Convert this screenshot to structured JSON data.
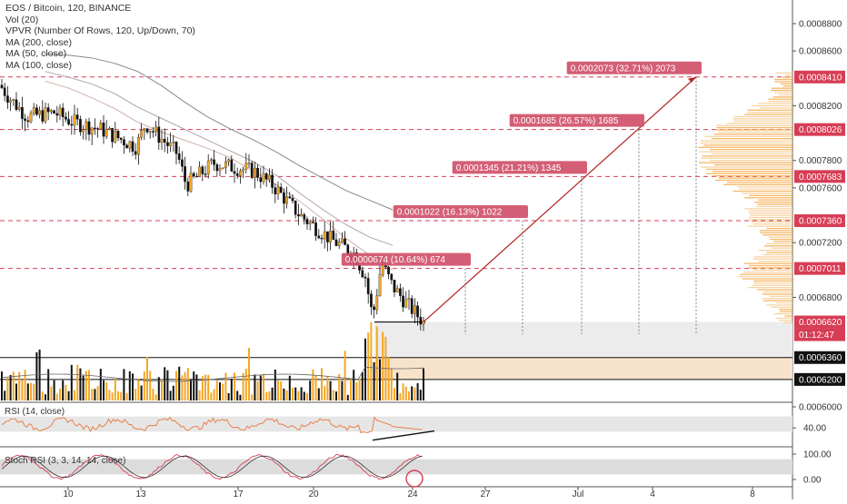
{
  "legend": {
    "symbol_line": "EOS / Bitcoin, 120, BINANCE",
    "vol_line": "Vol (20)",
    "vpvr_line": "VPVR (Number Of Rows, 120, Up/Down, 70)",
    "ma200_line": "MA (200, close)",
    "ma50_line": "MA (50, close)",
    "ma100_line": "MA (100, close)"
  },
  "price_axis": {
    "ticks": [
      "0.0008800",
      "0.0008600",
      "0.0008200",
      "0.0007800",
      "0.0007600",
      "0.0007200",
      "0.0006800",
      "0.0006000"
    ],
    "ticks_values": [
      0.00088,
      0.00086,
      0.00082,
      0.00078,
      0.00076,
      0.00072,
      0.00068,
      0.0006
    ]
  },
  "levels": [
    {
      "label": "0.0008410",
      "value": 0.000841,
      "style": "red"
    },
    {
      "label": "0.0008026",
      "value": 0.0008026,
      "style": "red"
    },
    {
      "label": "0.0007683",
      "value": 0.0007683,
      "style": "red"
    },
    {
      "label": "0.0007360",
      "value": 0.000736,
      "style": "red"
    },
    {
      "label": "0.0007011",
      "value": 0.0007011,
      "style": "red"
    },
    {
      "label": "0.0006620",
      "value": 0.000662,
      "style": "current"
    },
    {
      "label": "0.0006360",
      "value": 0.000636,
      "style": "black"
    },
    {
      "label": "0.0006200",
      "value": 0.00062,
      "style": "black"
    }
  ],
  "countdown": "01:12:47",
  "targets": [
    {
      "text": "0.0000674 (10.64%) 674",
      "value": 0.0007011,
      "date": "Jun 26"
    },
    {
      "text": "0.0001022 (16.13%) 1022",
      "value": 0.000736,
      "date": "Jun 27"
    },
    {
      "text": "0.0001345 (21.21%) 1345",
      "value": 0.0007683,
      "date": "Jun 30"
    },
    {
      "text": "0.0001685 (26.57%) 1685",
      "value": 0.0008026,
      "date": "Jul 3"
    },
    {
      "text": "0.0002073 (32.71%) 2073",
      "value": 0.000841,
      "date": "Jul 5"
    }
  ],
  "rsi": {
    "label": "RSI (14, close)",
    "tick": "40.00",
    "tick_value": 40
  },
  "stoch": {
    "label": "Stoch RSI (3, 3, 14, 14, close)",
    "ticks": [
      "100.00",
      "0.00"
    ],
    "tick_values": [
      100,
      0
    ]
  },
  "time_axis": {
    "labels": [
      "10",
      "13",
      "17",
      "20",
      "24",
      "27",
      "Jul",
      "4",
      "8"
    ]
  },
  "colors": {
    "candle": "#111111",
    "up_accent": "#f5a623",
    "level_red": "#d73d55",
    "volume_orange": "#f5a623",
    "rsi": "#e8773a",
    "ma200": "#888888",
    "ma50": "#d0b0a8",
    "ma100": "#b0a0a8"
  },
  "chart_data": {
    "type": "line",
    "title": "EOS / Bitcoin, 120, BINANCE",
    "xlabel": "",
    "ylabel": "",
    "ylim": [
      0.00059,
      0.000893
    ],
    "grid": false,
    "x": [
      "Jun 9",
      "Jun 10",
      "Jun 11",
      "Jun 12",
      "Jun 13",
      "Jun 14",
      "Jun 15",
      "Jun 16",
      "Jun 17",
      "Jun 18",
      "Jun 19",
      "Jun 20",
      "Jun 21",
      "Jun 22",
      "Jun 23",
      "Jun 24"
    ],
    "series": [
      {
        "name": "EOS / Bitcoin",
        "values": [
          0.000826,
          0.000814,
          0.00081,
          0.000803,
          0.000788,
          0.000806,
          0.000792,
          0.000775,
          0.00077,
          0.000765,
          0.000754,
          0.00072,
          0.000708,
          0.00068,
          0.000706,
          0.000662
        ]
      },
      {
        "name": "MA (200, close)",
        "values": [
          0.000858,
          0.000857,
          0.000855,
          0.000851,
          0.000845,
          0.000835,
          0.000823,
          0.000812,
          0.000803,
          0.000795,
          0.000786,
          0.000776,
          0.000767,
          0.000758,
          0.000751,
          0.000744
        ]
      },
      {
        "name": "MA (50, close)",
        "values": [
          0.000838,
          0.000833,
          0.000826,
          0.000818,
          0.000808,
          0.000801,
          0.000795,
          0.000789,
          0.000782,
          0.000772,
          0.000762,
          0.00075,
          0.000737,
          0.000723,
          0.000711,
          0.0007
        ]
      },
      {
        "name": "MA (100, close)",
        "values": [
          0.000845,
          0.000841,
          0.000836,
          0.000829,
          0.000819,
          0.000811,
          0.000803,
          0.000795,
          0.000787,
          0.000779,
          0.000769,
          0.000756,
          0.000744,
          0.000733,
          0.000724,
          0.000718
        ]
      }
    ]
  }
}
